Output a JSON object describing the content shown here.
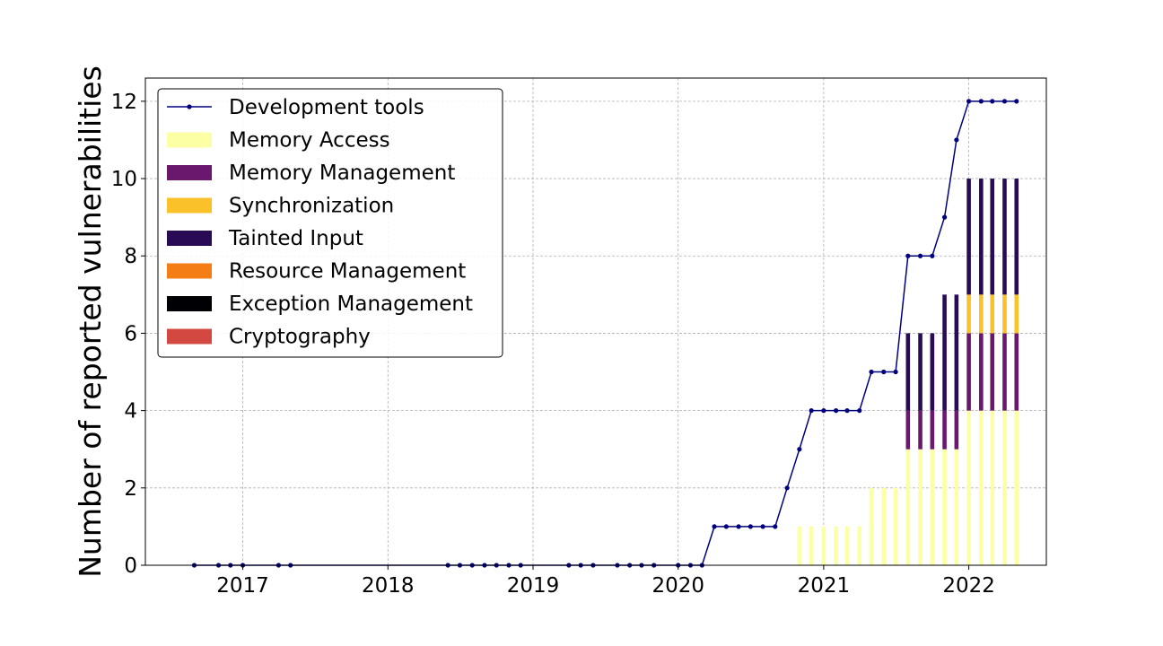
{
  "chart_data": {
    "type": "bar",
    "title": "",
    "xlabel": "",
    "ylabel": "Number of reported vulnerabilities",
    "xlim": [
      "2016-05-01",
      "2022-07-15"
    ],
    "ylim": [
      0,
      12.6
    ],
    "x_ticks": [
      "2017",
      "2018",
      "2019",
      "2020",
      "2021",
      "2022"
    ],
    "y_ticks": [
      "0",
      "2",
      "4",
      "6",
      "8",
      "10",
      "12"
    ],
    "grid": true,
    "legend_position": "top-left",
    "line_series": {
      "name": "Development tools",
      "color": "#00007f",
      "points": [
        [
          "2016-09-01",
          0
        ],
        [
          "2016-11-01",
          0
        ],
        [
          "2016-12-01",
          0
        ],
        [
          "2017-01-01",
          0
        ],
        [
          "2017-04-01",
          0
        ],
        [
          "2017-05-01",
          0
        ],
        [
          "2018-06-01",
          0
        ],
        [
          "2018-07-01",
          0
        ],
        [
          "2018-08-01",
          0
        ],
        [
          "2018-09-01",
          0
        ],
        [
          "2018-10-01",
          0
        ],
        [
          "2018-11-01",
          0
        ],
        [
          "2018-12-01",
          0
        ],
        [
          "2019-04-01",
          0
        ],
        [
          "2019-05-01",
          0
        ],
        [
          "2019-06-01",
          0
        ],
        [
          "2019-08-01",
          0
        ],
        [
          "2019-09-01",
          0
        ],
        [
          "2019-10-01",
          0
        ],
        [
          "2019-11-01",
          0
        ],
        [
          "2020-01-01",
          0
        ],
        [
          "2020-02-01",
          0
        ],
        [
          "2020-03-01",
          0
        ],
        [
          "2020-04-01",
          1
        ],
        [
          "2020-05-01",
          1
        ],
        [
          "2020-06-01",
          1
        ],
        [
          "2020-07-01",
          1
        ],
        [
          "2020-08-01",
          1
        ],
        [
          "2020-09-01",
          1
        ],
        [
          "2020-10-01",
          2
        ],
        [
          "2020-11-01",
          3
        ],
        [
          "2020-12-01",
          4
        ],
        [
          "2021-01-01",
          4
        ],
        [
          "2021-02-01",
          4
        ],
        [
          "2021-03-01",
          4
        ],
        [
          "2021-04-01",
          4
        ],
        [
          "2021-05-01",
          5
        ],
        [
          "2021-06-01",
          5
        ],
        [
          "2021-07-01",
          5
        ],
        [
          "2021-08-01",
          8
        ],
        [
          "2021-09-01",
          8
        ],
        [
          "2021-10-01",
          8
        ],
        [
          "2021-11-01",
          9
        ],
        [
          "2021-12-01",
          11
        ],
        [
          "2022-01-01",
          12
        ],
        [
          "2022-02-01",
          12
        ],
        [
          "2022-03-01",
          12
        ],
        [
          "2022-04-01",
          12
        ],
        [
          "2022-05-01",
          12
        ]
      ]
    },
    "bar_dates": [
      "2020-11-01",
      "2020-12-01",
      "2021-01-01",
      "2021-02-01",
      "2021-03-01",
      "2021-04-01",
      "2021-05-01",
      "2021-06-01",
      "2021-07-01",
      "2021-08-01",
      "2021-09-01",
      "2021-10-01",
      "2021-11-01",
      "2021-12-01",
      "2022-01-01",
      "2022-02-01",
      "2022-03-01",
      "2022-04-01",
      "2022-05-01"
    ],
    "series": [
      {
        "name": "Memory Access",
        "color": "#fcffa4",
        "values": [
          1,
          1,
          1,
          1,
          1,
          1,
          2,
          2,
          2,
          3,
          3,
          3,
          3,
          3,
          4,
          4,
          4,
          4,
          4
        ]
      },
      {
        "name": "Memory Management",
        "color": "#6a176e",
        "values": [
          0,
          0,
          0,
          0,
          0,
          0,
          0,
          0,
          0,
          1,
          1,
          1,
          1,
          1,
          2,
          2,
          2,
          2,
          2
        ]
      },
      {
        "name": "Synchronization",
        "color": "#fac228",
        "values": [
          0,
          0,
          0,
          0,
          0,
          0,
          0,
          0,
          0,
          0,
          0,
          0,
          0,
          0,
          1,
          1,
          1,
          1,
          1
        ]
      },
      {
        "name": "Tainted Input",
        "color": "#280b54",
        "values": [
          0,
          0,
          0,
          0,
          0,
          0,
          0,
          0,
          0,
          2,
          2,
          2,
          3,
          3,
          3,
          3,
          3,
          3,
          3
        ]
      },
      {
        "name": "Resource Management",
        "color": "#f57d15",
        "values": [
          0,
          0,
          0,
          0,
          0,
          0,
          0,
          0,
          0,
          0,
          0,
          0,
          0,
          0,
          0,
          0,
          0,
          0,
          0
        ]
      },
      {
        "name": "Exception Management",
        "color": "#000004",
        "values": [
          0,
          0,
          0,
          0,
          0,
          0,
          0,
          0,
          0,
          0,
          0,
          0,
          0,
          0,
          0,
          0,
          0,
          0,
          0
        ]
      },
      {
        "name": "Cryptography",
        "color": "#d44842",
        "values": [
          0,
          0,
          0,
          0,
          0,
          0,
          0,
          0,
          0,
          0,
          0,
          0,
          0,
          0,
          0,
          0,
          0,
          0,
          0
        ]
      }
    ]
  }
}
